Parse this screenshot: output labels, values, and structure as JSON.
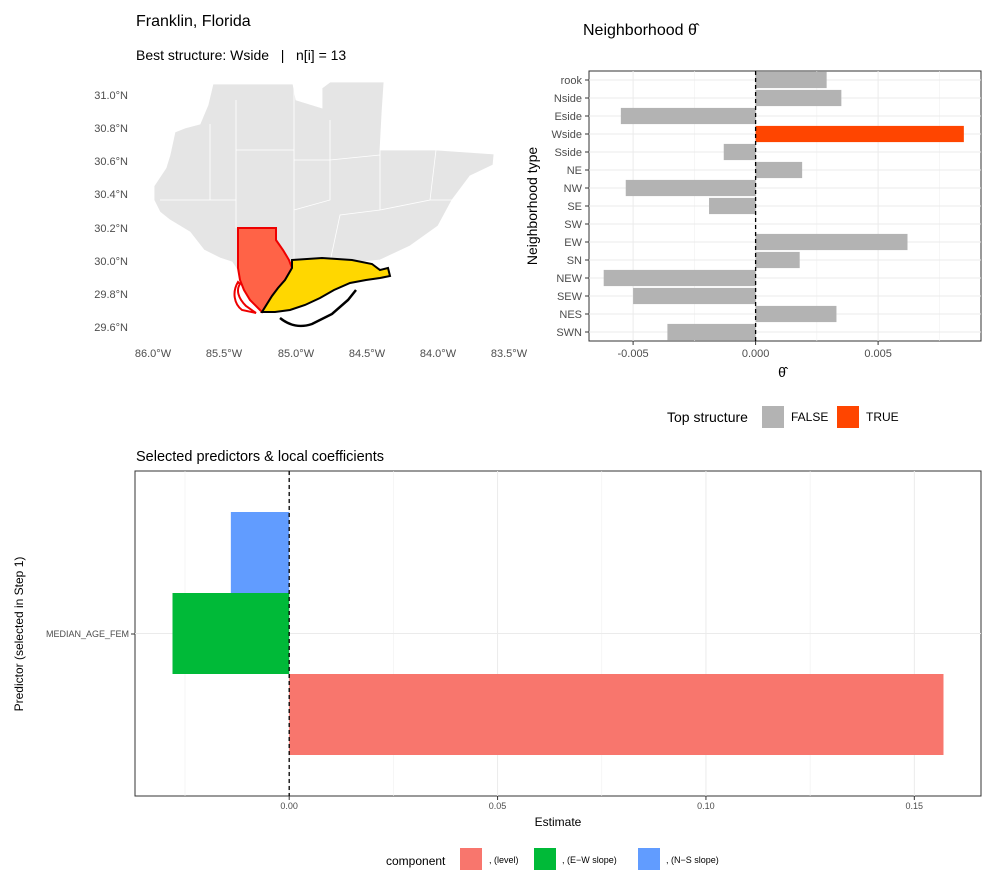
{
  "map": {
    "title": "Franklin, Florida",
    "subtitle": "Best structure: Wside   |   n[i] = 13",
    "lat_labels": [
      "31.0°N",
      "30.8°N",
      "30.6°N",
      "30.4°N",
      "30.2°N",
      "30.0°N",
      "29.8°N",
      "29.6°N"
    ],
    "lon_labels": [
      "86.0°W",
      "85.5°W",
      "85.0°W",
      "84.5°W",
      "84.0°W",
      "83.5°W"
    ],
    "lat_range": [
      29.55,
      31.1
    ],
    "lon_range": [
      -86.0,
      -83.5
    ]
  },
  "colors": {
    "true_bar": "#ff4500",
    "false_bar": "#b3b3b3",
    "level": "#f8766d",
    "ew": "#00ba38",
    "ns": "#619cff",
    "map_gray": "#e5e5e5",
    "focus_county": "#ffd700",
    "neighbor": "#ff6347"
  },
  "chart_data": [
    {
      "type": "bar",
      "orientation": "horizontal",
      "title": "Neighborhood θ̂",
      "xlabel": "θ̂",
      "ylabel": "Neighborhood type",
      "categories": [
        "rook",
        "Nside",
        "Eside",
        "Wside",
        "Sside",
        "NE",
        "NW",
        "SE",
        "SW",
        "EW",
        "SN",
        "NEW",
        "SEW",
        "NES",
        "SWN"
      ],
      "values": [
        0.0029,
        0.0035,
        -0.0055,
        0.0085,
        -0.0013,
        0.0019,
        -0.0053,
        -0.0019,
        0.0,
        0.0062,
        0.0018,
        -0.0062,
        -0.005,
        0.0033,
        -0.0036
      ],
      "highlight": [
        false,
        false,
        false,
        true,
        false,
        false,
        false,
        false,
        false,
        false,
        false,
        false,
        false,
        false,
        false
      ],
      "xlim": [
        -0.0068,
        0.0092
      ],
      "xticks": [
        -0.005,
        0.0,
        0.005
      ],
      "xtick_labels": [
        "-0.005",
        "0.000",
        "0.005"
      ],
      "legend": {
        "title": "Top structure",
        "entries": [
          "FALSE",
          "TRUE"
        ],
        "position": "bottom"
      }
    },
    {
      "type": "bar",
      "orientation": "horizontal",
      "title": "Selected predictors & local coefficients",
      "xlabel": "Estimate",
      "ylabel": "Predictor (selected in Step 1)",
      "categories": [
        "MEDIAN_AGE_FEM"
      ],
      "series": [
        {
          "name": ", (level)",
          "values": [
            0.157
          ]
        },
        {
          "name": ", (E−W slope)",
          "values": [
            -0.028
          ]
        },
        {
          "name": ", (N−S slope)",
          "values": [
            -0.014
          ]
        }
      ],
      "xlim": [
        -0.037,
        0.166
      ],
      "xticks": [
        0.0,
        0.05,
        0.1,
        0.15
      ],
      "xtick_labels": [
        "0.00",
        "0.05",
        "0.10",
        "0.15"
      ],
      "legend": {
        "title": "component",
        "entries": [
          ", (level)",
          ", (E−W slope)",
          ", (N−S slope)"
        ],
        "position": "bottom"
      }
    }
  ]
}
